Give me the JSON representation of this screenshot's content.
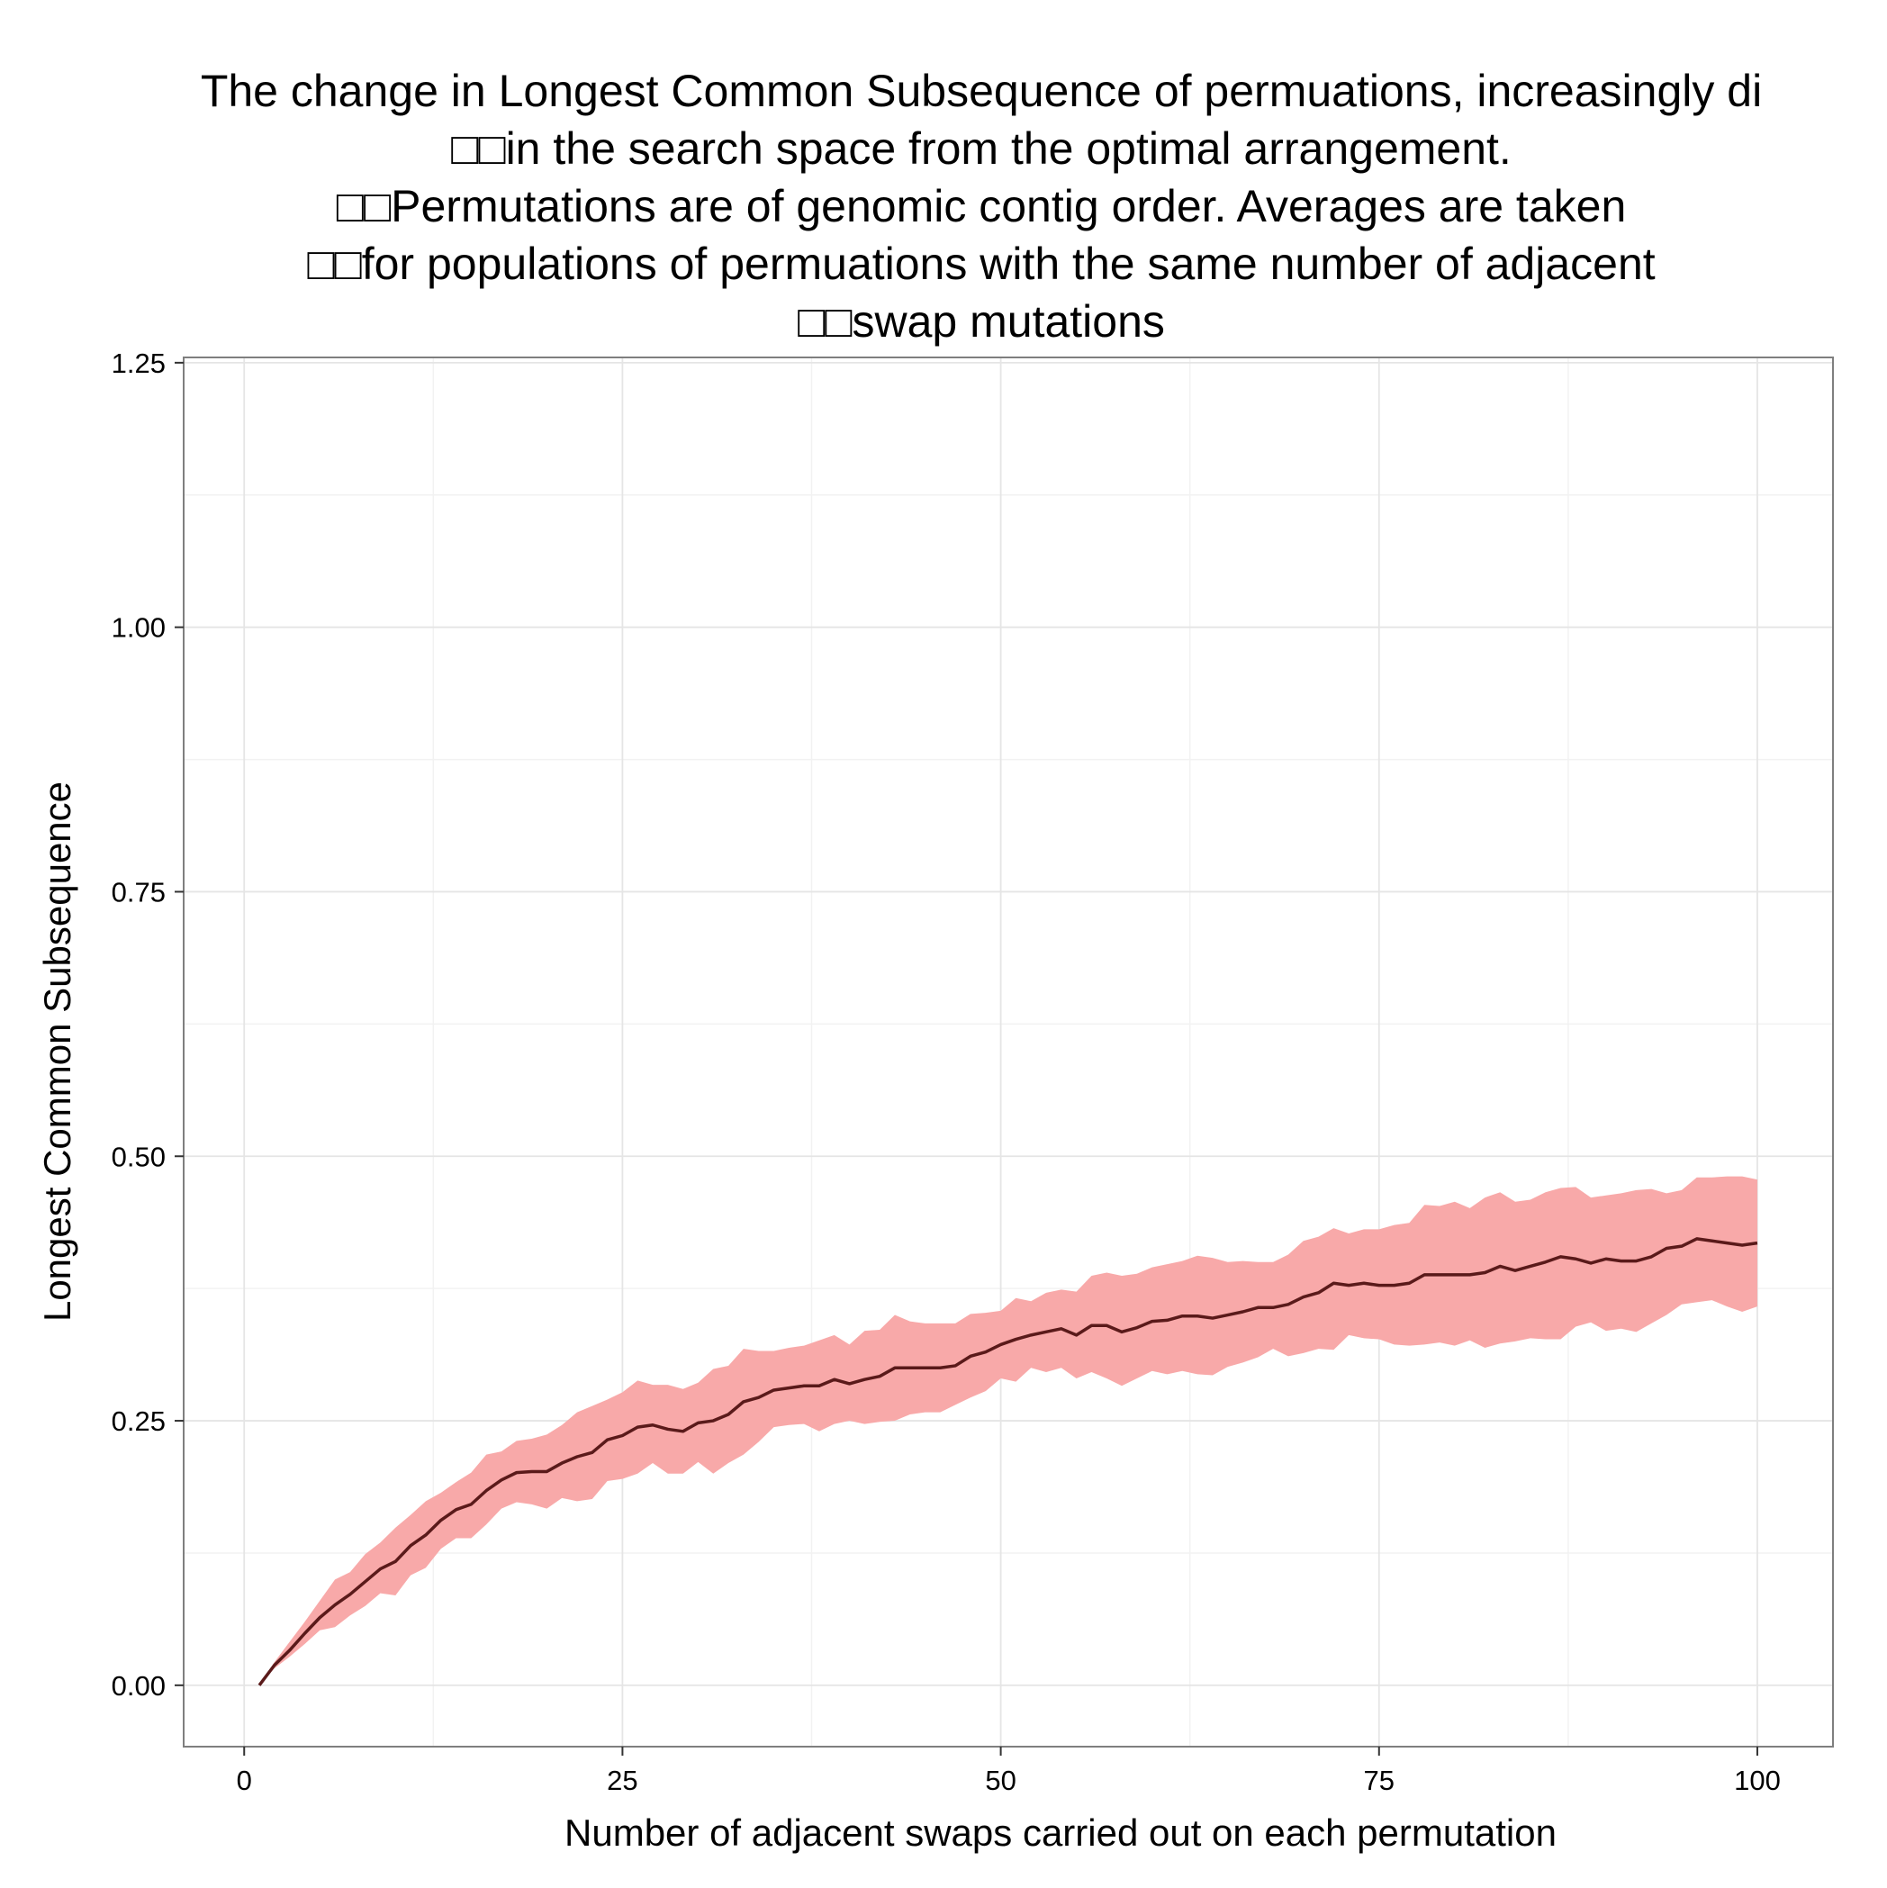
{
  "chart_data": {
    "type": "line",
    "title_lines": [
      "The change in Longest Common Subsequence of permuations, increasingly di",
      "□□in the search space from the optimal arrangement.",
      "□□Permutations are of genomic contig order. Averages are taken",
      "□□for populations of permuations with the same number of adjacent",
      "□□swap mutations"
    ],
    "xlabel": "Number of adjacent swaps carried out on each permutation",
    "ylabel": "Longest Common Subsequence",
    "xlim": [
      -4,
      105
    ],
    "ylim": [
      -0.058,
      1.255
    ],
    "x_ticks": [
      0,
      25,
      50,
      75,
      100
    ],
    "x_tick_labels": [
      "0",
      "25",
      "50",
      "75",
      "100"
    ],
    "y_ticks": [
      0.0,
      0.25,
      0.5,
      0.75,
      1.0,
      1.25
    ],
    "y_tick_labels": [
      "0.00",
      "0.25",
      "0.50",
      "0.75",
      "1.00",
      "1.25"
    ],
    "grid": true,
    "legend": "none",
    "colors": {
      "line": "#5a1a1a",
      "ribbon": "#f8a9a9",
      "panel_border": "#7f7f7f",
      "grid": "#e5e5e5"
    },
    "series": [
      {
        "x": [
          1,
          2,
          3,
          4,
          5,
          6,
          7,
          8,
          9,
          10,
          11,
          12,
          13,
          14,
          15,
          16,
          17,
          18,
          19,
          20,
          21,
          22,
          23,
          24,
          25,
          26,
          27,
          28,
          29,
          30,
          31,
          32,
          33,
          34,
          35,
          36,
          37,
          38,
          39,
          40,
          41,
          42,
          43,
          44,
          45,
          46,
          47,
          48,
          49,
          50,
          51,
          52,
          53,
          54,
          55,
          56,
          57,
          58,
          59,
          60,
          61,
          62,
          63,
          64,
          65,
          66,
          67,
          68,
          69,
          70,
          71,
          72,
          73,
          74,
          75,
          76,
          77,
          78,
          79,
          80,
          81,
          82,
          83,
          84,
          85,
          86,
          87,
          88,
          89,
          90,
          91,
          92,
          93,
          94,
          95,
          96,
          97,
          98,
          99,
          100
        ],
        "mean": [
          0.0,
          0.019,
          0.033,
          0.049,
          0.064,
          0.076,
          0.086,
          0.098,
          0.11,
          0.117,
          0.132,
          0.142,
          0.156,
          0.166,
          0.171,
          0.184,
          0.194,
          0.201,
          0.202,
          0.202,
          0.21,
          0.216,
          0.22,
          0.232,
          0.236,
          0.244,
          0.246,
          0.242,
          0.24,
          0.248,
          0.25,
          0.256,
          0.268,
          0.272,
          0.279,
          0.281,
          0.283,
          0.283,
          0.289,
          0.285,
          0.289,
          0.292,
          0.3,
          0.3,
          0.3,
          0.3,
          0.302,
          0.311,
          0.315,
          0.322,
          0.327,
          0.331,
          0.334,
          0.337,
          0.331,
          0.34,
          0.34,
          0.334,
          0.338,
          0.344,
          0.345,
          0.349,
          0.349,
          0.347,
          0.35,
          0.353,
          0.357,
          0.357,
          0.36,
          0.367,
          0.371,
          0.38,
          0.378,
          0.38,
          0.378,
          0.378,
          0.38,
          0.388,
          0.388,
          0.388,
          0.388,
          0.39,
          0.396,
          0.392,
          0.396,
          0.4,
          0.405,
          0.403,
          0.399,
          0.403,
          0.401,
          0.401,
          0.405,
          0.413,
          0.415,
          0.422,
          0.42,
          0.418,
          0.416,
          0.418
        ],
        "lower": [
          0.0,
          0.016,
          0.027,
          0.039,
          0.052,
          0.055,
          0.066,
          0.075,
          0.087,
          0.085,
          0.104,
          0.111,
          0.129,
          0.139,
          0.139,
          0.152,
          0.167,
          0.173,
          0.171,
          0.167,
          0.177,
          0.174,
          0.176,
          0.193,
          0.195,
          0.2,
          0.21,
          0.2,
          0.2,
          0.211,
          0.2,
          0.21,
          0.218,
          0.23,
          0.244,
          0.246,
          0.247,
          0.24,
          0.247,
          0.25,
          0.247,
          0.249,
          0.25,
          0.256,
          0.258,
          0.258,
          0.265,
          0.272,
          0.278,
          0.29,
          0.287,
          0.3,
          0.296,
          0.3,
          0.29,
          0.296,
          0.29,
          0.283,
          0.29,
          0.297,
          0.294,
          0.297,
          0.294,
          0.293,
          0.301,
          0.305,
          0.31,
          0.318,
          0.311,
          0.314,
          0.318,
          0.317,
          0.331,
          0.328,
          0.327,
          0.322,
          0.321,
          0.322,
          0.324,
          0.321,
          0.326,
          0.319,
          0.323,
          0.325,
          0.328,
          0.327,
          0.327,
          0.339,
          0.343,
          0.335,
          0.337,
          0.334,
          0.342,
          0.35,
          0.36,
          0.362,
          0.364,
          0.358,
          0.353,
          0.358
        ],
        "upper": [
          0.0,
          0.022,
          0.041,
          0.06,
          0.08,
          0.1,
          0.107,
          0.124,
          0.135,
          0.149,
          0.161,
          0.174,
          0.182,
          0.192,
          0.201,
          0.218,
          0.221,
          0.231,
          0.233,
          0.237,
          0.246,
          0.258,
          0.264,
          0.27,
          0.277,
          0.288,
          0.284,
          0.284,
          0.28,
          0.286,
          0.299,
          0.302,
          0.318,
          0.316,
          0.316,
          0.319,
          0.321,
          0.326,
          0.331,
          0.322,
          0.335,
          0.336,
          0.35,
          0.344,
          0.342,
          0.342,
          0.342,
          0.351,
          0.352,
          0.354,
          0.366,
          0.363,
          0.371,
          0.374,
          0.372,
          0.387,
          0.39,
          0.387,
          0.389,
          0.395,
          0.398,
          0.401,
          0.406,
          0.404,
          0.4,
          0.401,
          0.4,
          0.4,
          0.407,
          0.42,
          0.424,
          0.432,
          0.427,
          0.431,
          0.431,
          0.435,
          0.437,
          0.454,
          0.453,
          0.457,
          0.451,
          0.461,
          0.466,
          0.457,
          0.459,
          0.466,
          0.47,
          0.471,
          0.461,
          0.463,
          0.465,
          0.468,
          0.469,
          0.465,
          0.468,
          0.48,
          0.48,
          0.481,
          0.481,
          0.478
        ]
      }
    ]
  }
}
